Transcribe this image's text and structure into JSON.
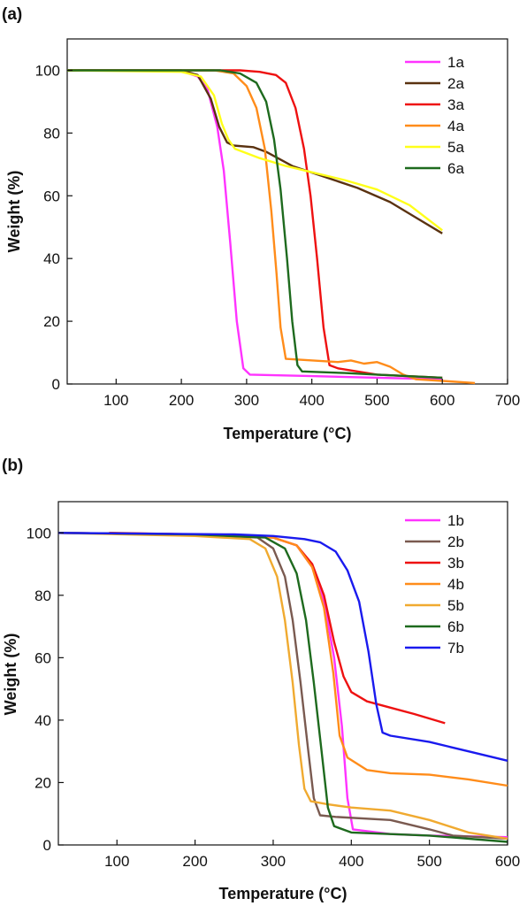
{
  "chart_data": [
    {
      "type": "line",
      "panel_label": "(a)",
      "xlabel": "Temperature (°C)",
      "ylabel": "Weight (%)",
      "xlim": [
        25,
        700
      ],
      "ylim": [
        0,
        110
      ],
      "xticks": [
        100,
        200,
        300,
        400,
        500,
        600,
        700
      ],
      "yticks": [
        0,
        20,
        40,
        60,
        80,
        100
      ],
      "grid": false,
      "legend_position": "top-right",
      "series": [
        {
          "name": "1a",
          "color": "#ff33ff",
          "points": [
            [
              25,
              100
            ],
            [
              200,
              99.8
            ],
            [
              225,
              98
            ],
            [
              240,
              94
            ],
            [
              255,
              82
            ],
            [
              265,
              68
            ],
            [
              275,
              45
            ],
            [
              285,
              20
            ],
            [
              295,
              5
            ],
            [
              305,
              3
            ],
            [
              400,
              2.5
            ],
            [
              500,
              2
            ],
            [
              600,
              1.5
            ]
          ]
        },
        {
          "name": "2a",
          "color": "#5a3210",
          "points": [
            [
              25,
              100
            ],
            [
              200,
              100
            ],
            [
              225,
              98.5
            ],
            [
              245,
              91
            ],
            [
              258,
              82
            ],
            [
              270,
              77
            ],
            [
              280,
              76
            ],
            [
              310,
              75.5
            ],
            [
              330,
              74
            ],
            [
              370,
              69.5
            ],
            [
              420,
              66
            ],
            [
              470,
              62.5
            ],
            [
              520,
              58
            ],
            [
              560,
              53
            ],
            [
              600,
              48
            ]
          ]
        },
        {
          "name": "3a",
          "color": "#ee1111",
          "points": [
            [
              25,
              100
            ],
            [
              290,
              100
            ],
            [
              320,
              99.5
            ],
            [
              345,
              98.5
            ],
            [
              360,
              96
            ],
            [
              375,
              88
            ],
            [
              388,
              75
            ],
            [
              398,
              60
            ],
            [
              408,
              40
            ],
            [
              418,
              18
            ],
            [
              427,
              6
            ],
            [
              440,
              5
            ],
            [
              500,
              3
            ],
            [
              600,
              2
            ]
          ]
        },
        {
          "name": "4a",
          "color": "#ff8c1a",
          "points": [
            [
              25,
              100
            ],
            [
              250,
              100
            ],
            [
              280,
              99
            ],
            [
              300,
              95
            ],
            [
              315,
              88
            ],
            [
              328,
              75
            ],
            [
              338,
              55
            ],
            [
              346,
              35
            ],
            [
              352,
              18
            ],
            [
              360,
              8
            ],
            [
              440,
              7
            ],
            [
              460,
              7.5
            ],
            [
              480,
              6.5
            ],
            [
              500,
              7
            ],
            [
              520,
              5.5
            ],
            [
              540,
              3
            ],
            [
              560,
              1.5
            ],
            [
              600,
              1
            ],
            [
              650,
              0.3
            ]
          ]
        },
        {
          "name": "5a",
          "color": "#ffff1a",
          "points": [
            [
              25,
              100
            ],
            [
              200,
              99.5
            ],
            [
              230,
              98
            ],
            [
              250,
              92
            ],
            [
              262,
              83
            ],
            [
              272,
              78
            ],
            [
              282,
              75
            ],
            [
              320,
              72
            ],
            [
              360,
              69.5
            ],
            [
              400,
              67.5
            ],
            [
              450,
              65
            ],
            [
              500,
              62
            ],
            [
              550,
              57
            ],
            [
              600,
              49
            ]
          ]
        },
        {
          "name": "6a",
          "color": "#1e6a1e",
          "points": [
            [
              25,
              100
            ],
            [
              260,
              100
            ],
            [
              290,
              99
            ],
            [
              315,
              96
            ],
            [
              330,
              90
            ],
            [
              342,
              78
            ],
            [
              352,
              62
            ],
            [
              362,
              40
            ],
            [
              370,
              20
            ],
            [
              378,
              6
            ],
            [
              385,
              4
            ],
            [
              450,
              3.5
            ],
            [
              500,
              3
            ],
            [
              600,
              2
            ]
          ]
        }
      ]
    },
    {
      "type": "line",
      "panel_label": "(b)",
      "xlabel": "Temperature (°C)",
      "ylabel": "Weight (%)",
      "xlim": [
        25,
        600
      ],
      "ylim": [
        0,
        110
      ],
      "xticks": [
        100,
        200,
        300,
        400,
        500,
        600
      ],
      "yticks": [
        0,
        20,
        40,
        60,
        80,
        100
      ],
      "grid": false,
      "legend_position": "top-right",
      "series": [
        {
          "name": "1b",
          "color": "#ff33ff",
          "points": [
            [
              25,
              100
            ],
            [
              200,
              99.5
            ],
            [
              300,
              98.5
            ],
            [
              330,
              96
            ],
            [
              350,
              89
            ],
            [
              365,
              78
            ],
            [
              378,
              60
            ],
            [
              388,
              38
            ],
            [
              395,
              15
            ],
            [
              402,
              5
            ],
            [
              450,
              3.5
            ],
            [
              500,
              3
            ],
            [
              600,
              2.5
            ]
          ]
        },
        {
          "name": "2b",
          "color": "#7a5a50",
          "points": [
            [
              25,
              100
            ],
            [
              200,
              99.5
            ],
            [
              280,
              98.5
            ],
            [
              300,
              95
            ],
            [
              315,
              86
            ],
            [
              325,
              72
            ],
            [
              335,
              52
            ],
            [
              345,
              30
            ],
            [
              352,
              15
            ],
            [
              360,
              9.5
            ],
            [
              380,
              9
            ],
            [
              450,
              8
            ],
            [
              500,
              5
            ],
            [
              530,
              3
            ],
            [
              600,
              2
            ]
          ]
        },
        {
          "name": "3b",
          "color": "#ee1111",
          "points": [
            [
              90,
              100
            ],
            [
              200,
              99.5
            ],
            [
              300,
              98.5
            ],
            [
              330,
              96
            ],
            [
              350,
              90
            ],
            [
              365,
              80
            ],
            [
              378,
              65
            ],
            [
              390,
              54
            ],
            [
              400,
              49
            ],
            [
              420,
              46
            ],
            [
              450,
              44
            ],
            [
              480,
              42
            ],
            [
              500,
              40.5
            ],
            [
              520,
              39
            ]
          ]
        },
        {
          "name": "4b",
          "color": "#ff8c1a",
          "points": [
            [
              25,
              100
            ],
            [
              200,
              99.5
            ],
            [
              300,
              98.5
            ],
            [
              330,
              96
            ],
            [
              350,
              89
            ],
            [
              365,
              76
            ],
            [
              377,
              55
            ],
            [
              385,
              35
            ],
            [
              395,
              28
            ],
            [
              420,
              24
            ],
            [
              450,
              23
            ],
            [
              500,
              22.5
            ],
            [
              550,
              21
            ],
            [
              600,
              19
            ]
          ]
        },
        {
          "name": "5b",
          "color": "#f0aa30",
          "points": [
            [
              25,
              100
            ],
            [
              200,
              99
            ],
            [
              270,
              98
            ],
            [
              290,
              95
            ],
            [
              305,
              86
            ],
            [
              315,
              72
            ],
            [
              325,
              52
            ],
            [
              333,
              32
            ],
            [
              340,
              18
            ],
            [
              348,
              14
            ],
            [
              370,
              13
            ],
            [
              400,
              12
            ],
            [
              450,
              11
            ],
            [
              500,
              8
            ],
            [
              550,
              4
            ],
            [
              600,
              2
            ]
          ]
        },
        {
          "name": "6b",
          "color": "#1e6a1e",
          "points": [
            [
              25,
              100
            ],
            [
              200,
              99.5
            ],
            [
              290,
              98.5
            ],
            [
              315,
              95
            ],
            [
              330,
              87
            ],
            [
              342,
              72
            ],
            [
              352,
              52
            ],
            [
              362,
              30
            ],
            [
              370,
              12
            ],
            [
              378,
              6
            ],
            [
              400,
              4
            ],
            [
              450,
              3.5
            ],
            [
              500,
              3
            ],
            [
              600,
              1
            ]
          ]
        },
        {
          "name": "7b",
          "color": "#1a1aee",
          "points": [
            [
              25,
              100
            ],
            [
              250,
              99.5
            ],
            [
              300,
              99
            ],
            [
              340,
              98
            ],
            [
              360,
              97
            ],
            [
              380,
              94
            ],
            [
              395,
              88
            ],
            [
              410,
              78
            ],
            [
              422,
              62
            ],
            [
              432,
              45
            ],
            [
              440,
              36
            ],
            [
              450,
              35
            ],
            [
              500,
              33
            ],
            [
              550,
              30
            ],
            [
              600,
              27
            ]
          ]
        }
      ]
    }
  ]
}
